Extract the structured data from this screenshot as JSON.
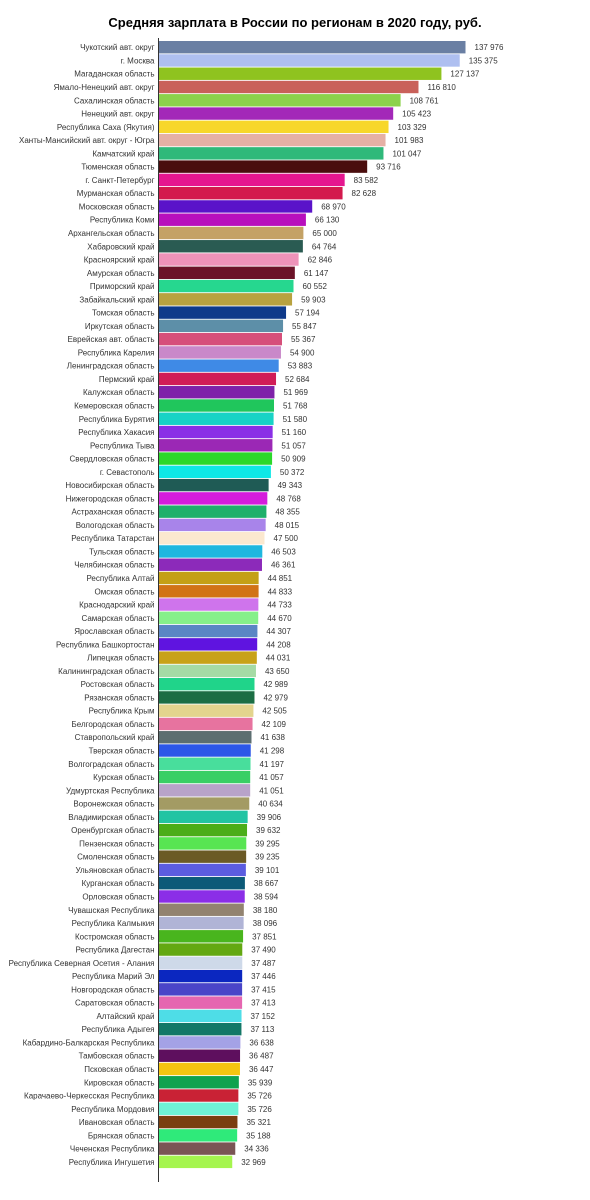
{
  "chart_data": {
    "type": "bar",
    "orientation": "horizontal",
    "title": "Средняя зарплата в России по регионам в 2020 году, руб.",
    "xlabel": "",
    "ylabel": "",
    "xlim": [
      0,
      140000
    ],
    "grid": false,
    "legend": "none",
    "categories": [
      "Чукотский авт. округ",
      "г. Москва",
      "Магаданская область",
      "Ямало-Ненецкий авт. округ",
      "Сахалинская область",
      "Ненецкий авт. округ",
      "Республика Саха (Якутия)",
      "Ханты-Мансийский авт. округ - Югра",
      "Камчатский край",
      "Тюменская область",
      "г. Санкт-Петербург",
      "Мурманская область",
      "Московская область",
      "Республика Коми",
      "Архангельская область",
      "Хабаровский край",
      "Красноярский край",
      "Амурская область",
      "Приморский край",
      "Забайкальский край",
      "Томская область",
      "Иркутская область",
      "Еврейская авт. область",
      "Республика Карелия",
      "Ленинградская область",
      "Пермский край",
      "Калужская область",
      "Кемеровская область",
      "Республика Бурятия",
      "Республика Хакасия",
      "Республика Тыва",
      "Свердловская область",
      "г. Севастополь",
      "Новосибирская область",
      "Нижегородская область",
      "Астраханская область",
      "Вологодская область",
      "Республика Татарстан",
      "Тульская область",
      "Челябинская область",
      "Республика Алтай",
      "Омская область",
      "Краснодарский край",
      "Самарская область",
      "Ярославская область",
      "Республика Башкортостан",
      "Липецкая область",
      "Калининградская область",
      "Ростовская область",
      "Рязанская область",
      "Республика Крым",
      "Белгородская область",
      "Ставропольский край",
      "Тверская область",
      "Волгоградская область",
      "Курская область",
      "Удмуртская Республика",
      "Воронежская область",
      "Владимирская область",
      "Оренбургская область",
      "Пензенская область",
      "Смоленская область",
      "Ульяновская область",
      "Курганская область",
      "Орловская область",
      "Чувашская Республика",
      "Республика Калмыкия",
      "Костромская область",
      "Республика Дагестан",
      "Республика Северная  Осетия - Алания",
      "Республика Марий Эл",
      "Новгородская область",
      "Саратовская область",
      "Алтайский край",
      "Республика Адыгея",
      "Кабардино-Балкарская Республика",
      "Тамбовская область",
      "Псковская область",
      "Кировская область",
      "Карачаево-Черкесская Республика",
      "Республика Мордовия",
      "Ивановская область",
      "Брянская область",
      "Чеченская Республика",
      "Республика Ингушетия"
    ],
    "values": [
      137976,
      135375,
      127137,
      116810,
      108761,
      105423,
      103329,
      101983,
      101047,
      93716,
      83582,
      82628,
      68970,
      66130,
      65000,
      64764,
      62846,
      61147,
      60552,
      59903,
      57194,
      55847,
      55367,
      54900,
      53883,
      52684,
      51969,
      51768,
      51580,
      51160,
      51057,
      50909,
      50372,
      49343,
      48768,
      48355,
      48015,
      47500,
      46503,
      46361,
      44851,
      44833,
      44733,
      44670,
      44307,
      44208,
      44031,
      43650,
      42989,
      42979,
      42505,
      42109,
      41638,
      41298,
      41197,
      41057,
      41051,
      40634,
      39906,
      39632,
      39295,
      39235,
      39101,
      38667,
      38594,
      38180,
      38096,
      37851,
      37490,
      37487,
      37446,
      37415,
      37413,
      37152,
      37113,
      36638,
      36487,
      36447,
      35939,
      35726,
      35726,
      35321,
      35188,
      34336,
      32969
    ],
    "value_labels": [
      "137 976",
      "135 375",
      "127 137",
      "116 810",
      "108 761",
      "105 423",
      "103 329",
      "101 983",
      "101 047",
      "93 716",
      "83 582",
      "82 628",
      "68 970",
      "66 130",
      "65 000",
      "64 764",
      "62 846",
      "61 147",
      "60 552",
      "59 903",
      "57 194",
      "55 847",
      "55 367",
      "54 900",
      "53 883",
      "52 684",
      "51 969",
      "51 768",
      "51 580",
      "51 160",
      "51 057",
      "50 909",
      "50 372",
      "49 343",
      "48 768",
      "48 355",
      "48 015",
      "47 500",
      "46 503",
      "46 361",
      "44 851",
      "44 833",
      "44 733",
      "44 670",
      "44 307",
      "44 208",
      "44 031",
      "43 650",
      "42 989",
      "42 979",
      "42 505",
      "42 109",
      "41 638",
      "41 298",
      "41 197",
      "41 057",
      "41 051",
      "40 634",
      "39 906",
      "39 632",
      "39 295",
      "39 235",
      "39 101",
      "38 667",
      "38 594",
      "38 180",
      "38 096",
      "37 851",
      "37 490",
      "37 487",
      "37 446",
      "37 415",
      "37 413",
      "37 152",
      "37 113",
      "36 638",
      "36 487",
      "36 447",
      "35 939",
      "35 726",
      "35 726",
      "35 321",
      "35 188",
      "34 336",
      "32 969"
    ],
    "colors": [
      "#6a7fa3",
      "#aebff0",
      "#8fc31f",
      "#c9615a",
      "#8cd24c",
      "#a328b8",
      "#f7d72a",
      "#e5b0a5",
      "#2fb97a",
      "#4a0d0d",
      "#e5168f",
      "#d31a4d",
      "#5a13c9",
      "#b80fbd",
      "#c4a265",
      "#2a5b52",
      "#ee93b9",
      "#6b1328",
      "#26d78f",
      "#b8a23f",
      "#0e3a8a",
      "#5d8fa8",
      "#d64f7a",
      "#c988c9",
      "#3f8ae6",
      "#d11d57",
      "#7f22a9",
      "#20c65c",
      "#18d3c6",
      "#8a2fe6",
      "#9b28b5",
      "#2bd82b",
      "#0ee8e6",
      "#1f5b55",
      "#d41ddc",
      "#1fb06b",
      "#a884ea",
      "#fbe8cf",
      "#1fb7df",
      "#8c2aba",
      "#c4a015",
      "#d17316",
      "#cf74ec",
      "#86f08a",
      "#5a86c4",
      "#5f14e0",
      "#c8a219",
      "#a5dba5",
      "#20d48a",
      "#1b6e44",
      "#e3d48d",
      "#e7739f",
      "#5c6e70",
      "#2c57e8",
      "#48de9c",
      "#39cf65",
      "#b8a3c9",
      "#a39b64",
      "#22c4a3",
      "#4bad19",
      "#58e552",
      "#6b5a25",
      "#5b5ce0",
      "#0c5a78",
      "#8b2ee7",
      "#928370",
      "#b0b4d6",
      "#49b51e",
      "#63a812",
      "#ced9e9",
      "#0b27c0",
      "#4a45c8",
      "#e566b0",
      "#4edde7",
      "#137867",
      "#a4a2e6",
      "#5e0f5e",
      "#f5c511",
      "#0fa24f",
      "#c92235",
      "#6ff2d6",
      "#7a3e10",
      "#2fea7a",
      "#7a5555",
      "#a5f54f"
    ]
  }
}
